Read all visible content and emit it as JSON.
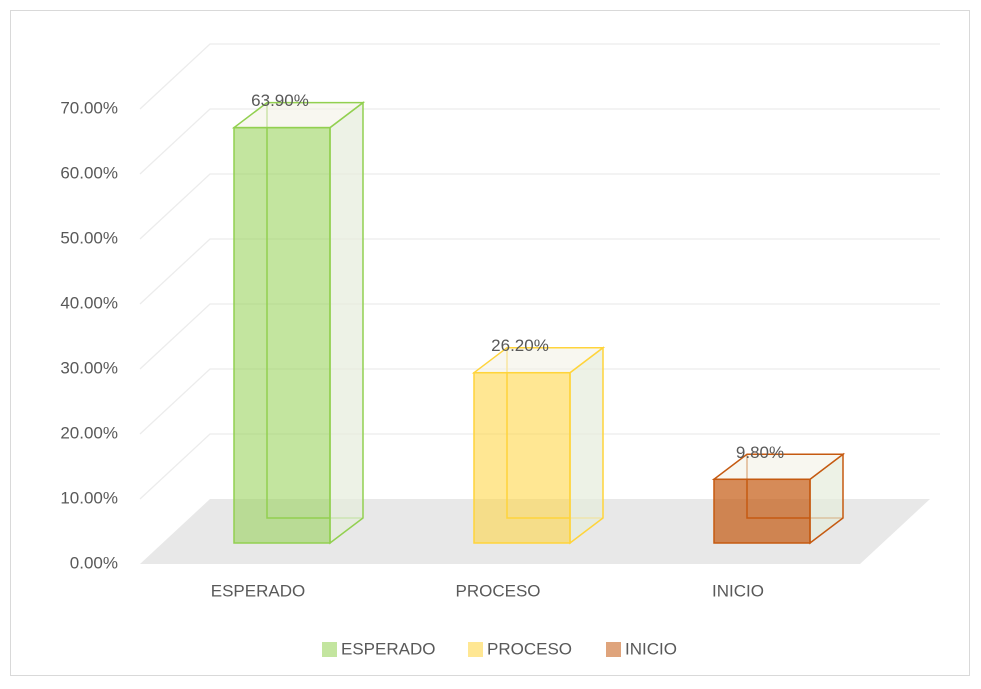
{
  "chart_data": {
    "type": "bar3d",
    "categories": [
      "ESPERADO",
      "PROCESO",
      "INICIO"
    ],
    "values": [
      63.9,
      26.2,
      9.8
    ],
    "value_labels": [
      "63.90%",
      "26.20%",
      "9.80%"
    ],
    "colors": [
      "#92d050",
      "#ffd43b",
      "#c55a11"
    ],
    "ylim": [
      0,
      70
    ],
    "yticks": [
      {
        "value": 0,
        "label": "0.00%"
      },
      {
        "value": 10,
        "label": "10.00%"
      },
      {
        "value": 20,
        "label": "20.00%"
      },
      {
        "value": 30,
        "label": "30.00%"
      },
      {
        "value": 40,
        "label": "40.00%"
      },
      {
        "value": 50,
        "label": "50.00%"
      },
      {
        "value": 60,
        "label": "60.00%"
      },
      {
        "value": 70,
        "label": "70.00%"
      }
    ],
    "grid": true,
    "legend": "bottom"
  }
}
